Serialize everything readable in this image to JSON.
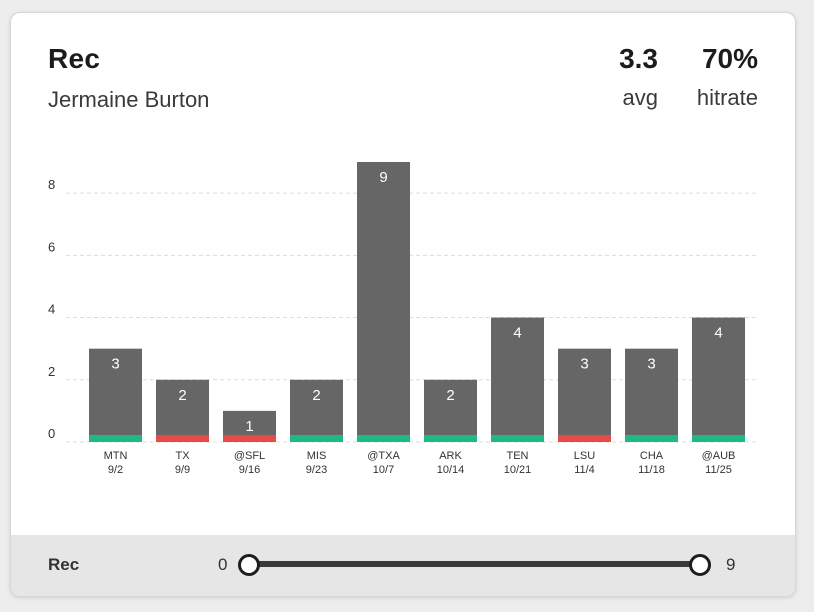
{
  "header": {
    "title": "Rec",
    "player": "Jermaine Burton",
    "avg_value": "3.3",
    "avg_label": "avg",
    "hitrate_value": "70%",
    "hitrate_label": "hitrate"
  },
  "colors": {
    "bar": "#666666",
    "hit": "#1dbb83",
    "miss": "#e84a4a",
    "grid": "#dddddd"
  },
  "chart_data": {
    "type": "bar",
    "categories": [
      "MTN",
      "TX",
      "@SFL",
      "MIS",
      "@TXA",
      "ARK",
      "TEN",
      "LSU",
      "CHA",
      "@AUB"
    ],
    "dates": [
      "9/2",
      "9/9",
      "9/16",
      "9/23",
      "10/7",
      "10/14",
      "10/21",
      "11/4",
      "11/18",
      "11/25"
    ],
    "values": [
      3,
      2,
      1,
      2,
      9,
      2,
      4,
      3,
      3,
      4
    ],
    "results": [
      "hit",
      "miss",
      "miss",
      "hit",
      "hit",
      "hit",
      "hit",
      "miss",
      "hit",
      "hit"
    ],
    "yticks": [
      0,
      2,
      4,
      6,
      8
    ],
    "ylim": [
      0,
      9
    ],
    "grid": true
  },
  "footer": {
    "label": "Rec",
    "min": "0",
    "max": "9"
  }
}
